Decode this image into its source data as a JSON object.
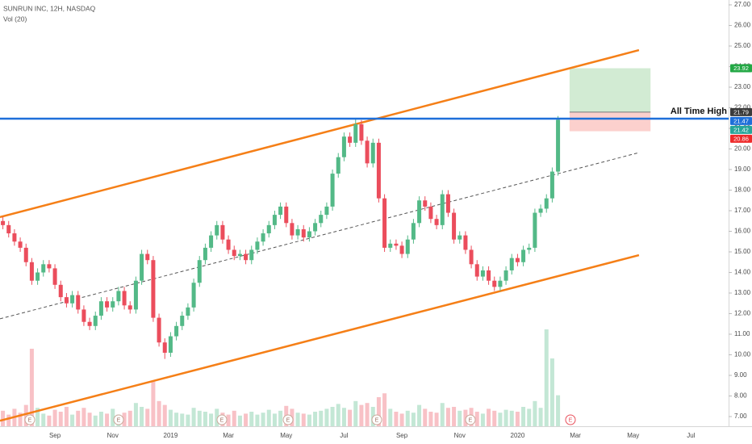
{
  "chart_data": {
    "type": "candlestick",
    "title": "SUNRUN INC, 12H, NASDAQ",
    "subtitle": "Vol (20)",
    "categories": [
      null,
      null,
      null,
      null,
      null,
      null,
      null,
      null,
      null,
      "Sep",
      null,
      null,
      null,
      null,
      null,
      null,
      null,
      null,
      null,
      "Nov",
      null,
      null,
      null,
      null,
      null,
      null,
      null,
      null,
      null,
      "2019",
      null,
      null,
      null,
      null,
      null,
      null,
      null,
      null,
      null,
      "Mar",
      null,
      null,
      null,
      null,
      null,
      null,
      null,
      null,
      null,
      "May",
      null,
      null,
      null,
      null,
      null,
      null,
      null,
      null,
      null,
      "Jul",
      null,
      null,
      null,
      null,
      null,
      null,
      null,
      null,
      null,
      "Sep",
      null,
      null,
      null,
      null,
      null,
      null,
      null,
      null,
      null,
      "Nov",
      null,
      null,
      null,
      null,
      null,
      null,
      null,
      null,
      null,
      "2020",
      null,
      null,
      null,
      null,
      null,
      null,
      null,
      null,
      null,
      "Mar",
      null,
      null,
      null,
      null,
      null,
      null,
      null,
      null,
      null,
      "May",
      null,
      null,
      null,
      null,
      null,
      null,
      null,
      null,
      null,
      "Jul",
      null,
      null,
      null,
      null,
      null,
      null
    ],
    "open": [
      16.5,
      16.3,
      15.9,
      15.5,
      15.2,
      14.5,
      13.6,
      14.0,
      14.4,
      14.2,
      13.4,
      12.8,
      12.5,
      12.9,
      12.2,
      11.6,
      11.4,
      11.9,
      12.6,
      12.3,
      12.6,
      13.1,
      12.4,
      12.2,
      13.6,
      14.9,
      14.6,
      11.8,
      10.6,
      10.1,
      10.9,
      11.4,
      11.9,
      12.3,
      13.5,
      14.6,
      15.2,
      15.8,
      16.3,
      15.6,
      15.1,
      14.8,
      14.9,
      14.6,
      15.1,
      15.5,
      15.9,
      16.3,
      16.8,
      17.2,
      16.4,
      15.8,
      16.1,
      15.7,
      16.0,
      16.4,
      16.8,
      17.2,
      18.8,
      19.6,
      20.6,
      20.3,
      21.2,
      20.4,
      19.3,
      20.3,
      17.6,
      15.2,
      15.4,
      15.3,
      14.9,
      15.6,
      16.4,
      17.5,
      17.2,
      16.6,
      16.3,
      17.8,
      16.9,
      15.6,
      15.8,
      15.1,
      14.4,
      13.8,
      14.1,
      13.6,
      13.3,
      13.6,
      14.1,
      14.7,
      14.5,
      15.1,
      15.2,
      16.9,
      17.1,
      17.6,
      18.9,
      null,
      null,
      null,
      null,
      null,
      null,
      null,
      null,
      null,
      null,
      null,
      null,
      null,
      null,
      null,
      null,
      null,
      null,
      null,
      null,
      null,
      null,
      null,
      null,
      null,
      null,
      null,
      null,
      null
    ],
    "high": [
      16.7,
      16.5,
      16.1,
      15.7,
      15.4,
      14.7,
      14.2,
      14.6,
      14.6,
      14.4,
      13.6,
      13.0,
      13.1,
      13.1,
      12.4,
      11.8,
      12.1,
      12.8,
      12.8,
      12.8,
      13.3,
      13.3,
      12.6,
      13.8,
      15.1,
      15.1,
      14.8,
      12.0,
      10.8,
      11.1,
      11.6,
      12.1,
      12.5,
      13.7,
      14.8,
      15.4,
      16.0,
      16.5,
      16.5,
      15.8,
      15.3,
      15.1,
      15.1,
      15.3,
      15.7,
      16.1,
      16.5,
      17.0,
      17.4,
      17.4,
      16.6,
      16.3,
      16.3,
      16.2,
      16.6,
      17.0,
      17.4,
      19.0,
      19.8,
      20.8,
      20.8,
      21.5,
      21.4,
      20.6,
      20.5,
      20.5,
      17.8,
      15.6,
      15.6,
      15.5,
      15.8,
      16.6,
      17.7,
      17.7,
      17.4,
      16.8,
      18.0,
      18.0,
      17.1,
      16.0,
      16.0,
      15.3,
      14.6,
      14.3,
      14.3,
      13.8,
      13.8,
      14.3,
      14.9,
      14.9,
      15.3,
      15.4,
      17.1,
      17.3,
      17.8,
      19.1,
      21.6,
      null,
      null,
      null,
      null,
      null,
      null,
      null,
      null,
      null,
      null,
      null,
      null,
      null,
      null,
      null,
      null,
      null,
      null,
      null,
      null,
      null,
      null,
      null,
      null,
      null,
      null,
      null,
      null,
      null
    ],
    "low": [
      16.1,
      15.7,
      15.3,
      15.0,
      14.3,
      13.4,
      13.4,
      13.8,
      14.0,
      13.2,
      12.6,
      12.3,
      12.3,
      12.0,
      11.4,
      11.2,
      11.2,
      11.7,
      12.1,
      12.1,
      12.4,
      12.2,
      12.0,
      12.0,
      13.4,
      14.4,
      11.6,
      10.4,
      9.8,
      9.9,
      10.7,
      11.2,
      11.7,
      12.1,
      13.3,
      14.4,
      15.0,
      15.6,
      15.4,
      14.9,
      14.6,
      14.6,
      14.4,
      14.4,
      14.9,
      15.3,
      15.7,
      16.1,
      16.6,
      16.2,
      15.6,
      15.6,
      15.5,
      15.5,
      15.8,
      16.2,
      16.6,
      17.0,
      18.6,
      19.4,
      20.1,
      20.1,
      20.2,
      19.1,
      19.1,
      17.4,
      15.0,
      15.0,
      15.1,
      14.7,
      14.7,
      15.4,
      16.2,
      17.0,
      16.4,
      16.1,
      16.1,
      16.7,
      15.4,
      15.4,
      14.9,
      14.2,
      13.6,
      13.6,
      13.4,
      13.1,
      13.1,
      13.4,
      13.9,
      14.3,
      14.3,
      14.9,
      15.0,
      16.7,
      16.9,
      17.4,
      18.7,
      null,
      null,
      null,
      null,
      null,
      null,
      null,
      null,
      null,
      null,
      null,
      null,
      null,
      null,
      null,
      null,
      null,
      null,
      null,
      null,
      null,
      null,
      null,
      null,
      null,
      null,
      null,
      null,
      null
    ],
    "close": [
      16.3,
      15.9,
      15.5,
      15.2,
      14.5,
      13.6,
      14.0,
      14.4,
      14.2,
      13.4,
      12.8,
      12.5,
      12.9,
      12.2,
      11.6,
      11.4,
      11.9,
      12.6,
      12.3,
      12.6,
      13.1,
      12.4,
      12.2,
      13.6,
      14.9,
      14.6,
      11.8,
      10.6,
      10.1,
      10.9,
      11.4,
      11.9,
      12.3,
      13.5,
      14.6,
      15.2,
      15.8,
      16.3,
      15.6,
      15.1,
      14.8,
      14.9,
      14.6,
      15.1,
      15.5,
      15.9,
      16.3,
      16.8,
      17.2,
      16.4,
      15.8,
      16.1,
      15.7,
      16.0,
      16.4,
      16.8,
      17.2,
      18.8,
      19.6,
      20.6,
      20.3,
      21.2,
      20.4,
      19.3,
      20.3,
      17.6,
      15.2,
      15.4,
      15.3,
      14.9,
      15.6,
      16.4,
      17.5,
      17.2,
      16.6,
      16.3,
      17.8,
      16.9,
      15.6,
      15.8,
      15.1,
      14.4,
      13.8,
      14.1,
      13.6,
      13.3,
      13.6,
      14.1,
      14.7,
      14.5,
      15.1,
      15.2,
      16.9,
      17.1,
      17.6,
      18.9,
      21.42,
      null,
      null,
      null,
      null,
      null,
      null,
      null,
      null,
      null,
      null,
      null,
      null,
      null,
      null,
      null,
      null,
      null,
      null,
      null,
      null,
      null,
      null,
      null,
      null,
      null,
      null,
      null,
      null,
      null
    ],
    "volume": [
      1.6,
      1.2,
      1.8,
      1.4,
      2.2,
      8.0,
      1.9,
      1.3,
      1.1,
      1.7,
      1.5,
      2.0,
      1.2,
      1.6,
      1.9,
      1.4,
      1.1,
      1.5,
      1.3,
      1.8,
      1.2,
      1.4,
      1.6,
      2.4,
      2.0,
      1.8,
      4.6,
      2.6,
      2.2,
      1.7,
      1.4,
      1.3,
      1.2,
      1.9,
      1.6,
      1.5,
      1.3,
      1.8,
      1.4,
      1.2,
      1.6,
      1.1,
      1.3,
      1.5,
      1.2,
      1.4,
      1.7,
      1.3,
      1.6,
      2.1,
      1.8,
      1.4,
      1.3,
      1.2,
      1.5,
      1.6,
      1.8,
      2.0,
      2.3,
      1.9,
      1.7,
      2.6,
      2.2,
      2.4,
      2.0,
      3.0,
      3.4,
      1.8,
      1.5,
      1.3,
      1.6,
      1.4,
      2.2,
      1.8,
      1.5,
      1.4,
      2.4,
      1.9,
      2.0,
      1.6,
      1.7,
      1.9,
      1.5,
      1.3,
      1.8,
      1.6,
      1.4,
      1.7,
      1.6,
      1.5,
      2.0,
      1.8,
      2.6,
      1.9,
      10.0,
      7.0,
      3.2,
      null,
      null,
      null,
      null,
      null,
      null,
      null,
      null,
      null,
      null,
      null,
      null,
      null,
      null,
      null,
      null,
      null,
      null,
      null,
      null,
      null,
      null,
      null,
      null,
      null,
      null,
      null,
      null,
      null
    ],
    "up_color": "#53b987",
    "down_color": "#eb4d5c",
    "ylim": [
      6.53,
      27.235
    ],
    "yticks": [
      {
        "value": 7,
        "label": "7.00"
      },
      {
        "value": 8,
        "label": "8.00"
      },
      {
        "value": 9,
        "label": "9.00"
      },
      {
        "value": 10,
        "label": "10.00"
      },
      {
        "value": 11,
        "label": "11.00"
      },
      {
        "value": 12,
        "label": "12.00"
      },
      {
        "value": 13,
        "label": "13.00"
      },
      {
        "value": 14,
        "label": "14.00"
      },
      {
        "value": 15,
        "label": "15.00"
      },
      {
        "value": 16,
        "label": "16.00"
      },
      {
        "value": 17,
        "label": "17.00"
      },
      {
        "value": 18,
        "label": "18.00"
      },
      {
        "value": 19,
        "label": "19.00"
      },
      {
        "value": 20,
        "label": "20.00"
      },
      {
        "value": 21,
        "label": "21.00"
      },
      {
        "value": 22,
        "label": "22.00"
      },
      {
        "value": 23,
        "label": "23.00"
      },
      {
        "value": 24,
        "label": "24.00"
      },
      {
        "value": 25,
        "label": "25.00"
      },
      {
        "value": 26,
        "label": "26.00"
      },
      {
        "value": 27,
        "label": "27.00"
      }
    ],
    "drawings": [
      {
        "color": "#f57f17",
        "style": "solid",
        "points": [
          [
            0,
            16.69
          ],
          [
            110,
            24.8
          ]
        ]
      },
      {
        "color": "#f57f17",
        "style": "solid",
        "points": [
          [
            0,
            6.8
          ],
          [
            110,
            14.84
          ]
        ]
      },
      {
        "color": "#555555",
        "style": "dashed",
        "points": [
          [
            0,
            11.75
          ],
          [
            110,
            19.82
          ]
        ]
      }
    ],
    "horizontal_line": {
      "value": 21.47,
      "color": "#1e6fd9",
      "label": "All Time High"
    },
    "position": {
      "target": 23.92,
      "entry": 21.79,
      "stop": 20.86,
      "start": 98,
      "end": 112
    },
    "price_tags": [
      {
        "value": 23.92,
        "color": "#23a845"
      },
      {
        "value": 21.79,
        "color": "#3b3b3b"
      },
      {
        "value": 21.47,
        "color": "#1e6fd9"
      },
      {
        "value": 21.42,
        "color": "#26a69a"
      },
      {
        "value": 20.86,
        "color": "#ee2b2b"
      }
    ],
    "earnings": [
      "E",
      "E",
      "E",
      "E",
      "E",
      "E",
      "E"
    ]
  }
}
